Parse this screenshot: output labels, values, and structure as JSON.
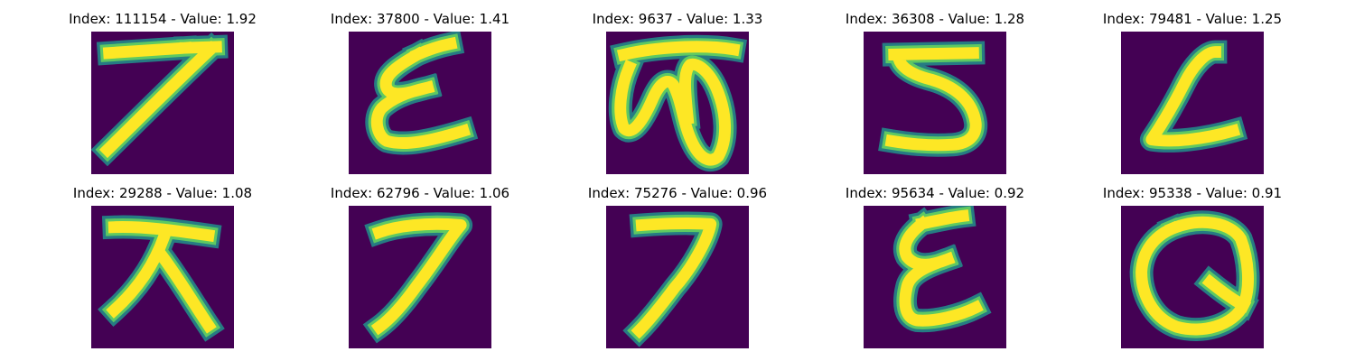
{
  "colors": {
    "background": "#440154",
    "stroke_outer": "#21918c",
    "stroke_mid": "#5ec962",
    "stroke_core": "#fde725"
  },
  "panels": [
    {
      "title": "Index: 111154 - Value: 1.92",
      "glyph": "seven-bar"
    },
    {
      "title": "Index: 37800 - Value: 1.41",
      "glyph": "epsilon-a"
    },
    {
      "title": "Index: 9637 - Value: 1.33",
      "glyph": "loops"
    },
    {
      "title": "Index: 36308 - Value: 1.28",
      "glyph": "five"
    },
    {
      "title": "Index: 79481 - Value: 1.25",
      "glyph": "l-shape"
    },
    {
      "title": "Index: 29288 - Value: 1.08",
      "glyph": "tee-fork"
    },
    {
      "title": "Index: 62796 - Value: 1.06",
      "glyph": "seven-a"
    },
    {
      "title": "Index: 75276 - Value: 0.96",
      "glyph": "seven-b"
    },
    {
      "title": "Index: 95634 - Value: 0.92",
      "glyph": "epsilon-b"
    },
    {
      "title": "Index: 95338 - Value: 0.91",
      "glyph": "circle-q"
    }
  ]
}
